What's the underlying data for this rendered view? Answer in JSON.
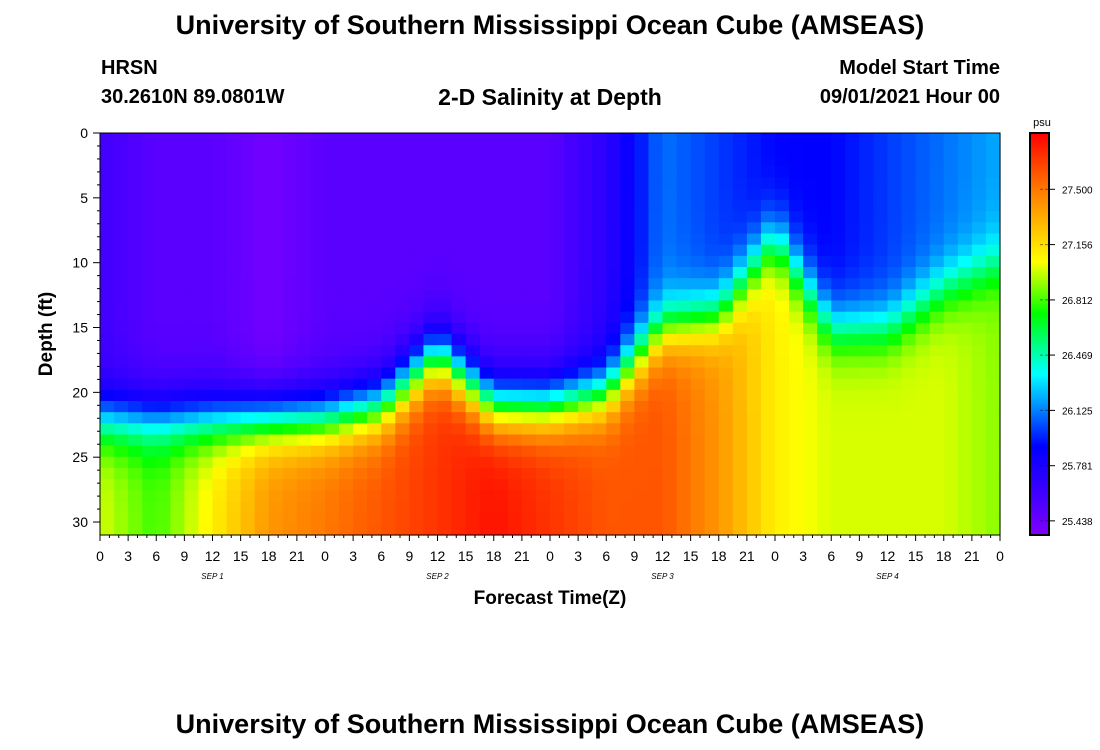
{
  "header": {
    "title": "University of Southern Mississippi Ocean Cube (AMSEAS)",
    "station": "HRSN",
    "coords": "30.2610N  89.0801W",
    "product": "2-D Salinity at Depth",
    "model_start_label": "Model Start Time",
    "model_start_value": "09/01/2021 Hour 00"
  },
  "footer": {
    "title": "University of Southern Mississippi Ocean Cube (AMSEAS)"
  },
  "chart_data": {
    "type": "heatmap",
    "title": "2-D Salinity at Depth",
    "xlabel": "Forecast Time(Z)",
    "ylabel": "Depth (ft)",
    "units": "psu",
    "x_ticks": [
      "0",
      "3",
      "6",
      "9",
      "12",
      "15",
      "18",
      "21",
      "0",
      "3",
      "6",
      "9",
      "12",
      "15",
      "18",
      "21",
      "0",
      "3",
      "6",
      "9",
      "12",
      "15",
      "18",
      "21",
      "0",
      "3",
      "6",
      "9",
      "12",
      "15",
      "18",
      "21",
      "0"
    ],
    "x_hours_range": [
      0,
      96
    ],
    "day_labels": [
      {
        "label": "SEP 1",
        "hour": 12
      },
      {
        "label": "SEP 2",
        "hour": 36
      },
      {
        "label": "SEP 3",
        "hour": 60
      },
      {
        "label": "SEP 4",
        "hour": 84
      }
    ],
    "y_ticks": [
      "0",
      "5",
      "10",
      "15",
      "20",
      "25",
      "30"
    ],
    "ylim": [
      0,
      31
    ],
    "y_reversed": true,
    "colorbar_ticks": [
      "27.500",
      "27.156",
      "26.812",
      "26.469",
      "26.125",
      "25.781",
      "25.438"
    ],
    "colorbar_range": [
      25.35,
      27.85
    ],
    "colors": {
      "colormap": [
        "#8000ff",
        "#0000ff",
        "#00ffff",
        "#00ff00",
        "#ffff00",
        "#ff8000",
        "#ff0000"
      ]
    },
    "approx_field": {
      "time_hours": [
        0,
        6,
        12,
        18,
        24,
        30,
        36,
        42,
        48,
        54,
        60,
        66,
        72,
        78,
        84,
        90,
        96
      ],
      "transition_depth_ft": [
        22,
        22,
        22,
        22,
        22,
        21,
        17,
        21,
        21,
        20,
        15,
        14,
        8,
        15,
        15,
        12,
        10
      ],
      "surface_salinity_psu": [
        25.6,
        25.5,
        25.5,
        25.4,
        25.5,
        25.5,
        25.5,
        25.5,
        25.5,
        25.7,
        26.1,
        26.0,
        25.9,
        25.9,
        26.0,
        26.1,
        26.2
      ],
      "bottom_salinity_psu": [
        27.0,
        26.8,
        27.1,
        27.4,
        27.5,
        27.6,
        27.7,
        27.8,
        27.7,
        27.6,
        27.6,
        27.4,
        27.1,
        27.0,
        27.0,
        27.0,
        26.9
      ]
    }
  }
}
